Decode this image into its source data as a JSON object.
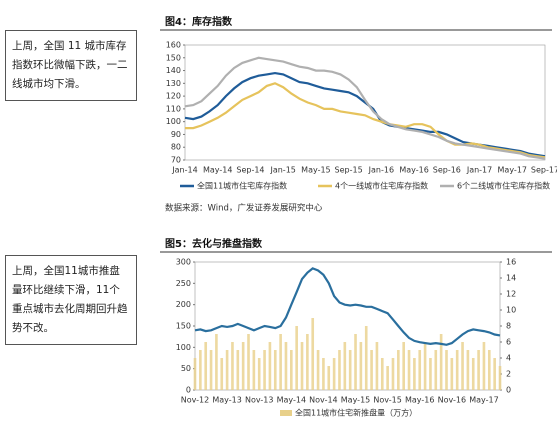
{
  "notes": [
    "上周，全国 11 城市库存指数环比微幅下跌，一二线城市均下滑。",
    "上周，全国11城市推盘量环比继续下滑，11个重点城市去化周期回升趋势不改。"
  ],
  "source": "数据来源：Wind，广发证券发展研究中心",
  "chart_data": [
    {
      "type": "line",
      "title": "图4：库存指数",
      "categories": [
        "Jan-14",
        null,
        null,
        null,
        "May-14",
        null,
        null,
        null,
        "Sep-14",
        null,
        null,
        null,
        "Jan-15",
        null,
        null,
        null,
        "May-15",
        null,
        null,
        null,
        "Sep-15",
        null,
        null,
        null,
        "Jan-16",
        null,
        null,
        null,
        "May-16",
        null,
        null,
        null,
        "Sep-16",
        null,
        null,
        null,
        "Jan-17",
        null,
        null,
        null,
        "May-17",
        null,
        null,
        null,
        "Sep-17"
      ],
      "series": [
        {
          "name": "全国11城市住宅库存指数",
          "color": "#1f5c99",
          "values": [
            103,
            102,
            104,
            108,
            113,
            120,
            126,
            131,
            134,
            136,
            137,
            138,
            137,
            134,
            131,
            130,
            128,
            126,
            125,
            124,
            123,
            120,
            115,
            110,
            100,
            97,
            96,
            95,
            94,
            93,
            92,
            92,
            90,
            87,
            84,
            83,
            82,
            81,
            80,
            79,
            78,
            77,
            75,
            74,
            73
          ]
        },
        {
          "name": "4个一线城市住宅库存指数",
          "color": "#e6c35c",
          "values": [
            95,
            95,
            97,
            100,
            103,
            107,
            112,
            117,
            120,
            123,
            128,
            130,
            127,
            122,
            118,
            115,
            113,
            110,
            110,
            108,
            107,
            106,
            105,
            102,
            100,
            98,
            97,
            96,
            98,
            98,
            96,
            90,
            85,
            82,
            82,
            83,
            82,
            80,
            79,
            78,
            77,
            76,
            74,
            73,
            72
          ]
        },
        {
          "name": "6个二线城市住宅库存指数",
          "color": "#b0b0b0",
          "values": [
            112,
            113,
            116,
            122,
            128,
            136,
            142,
            146,
            148,
            150,
            149,
            148,
            147,
            145,
            143,
            142,
            140,
            140,
            139,
            137,
            133,
            127,
            117,
            108,
            102,
            98,
            96,
            94,
            93,
            92,
            90,
            88,
            85,
            83,
            82,
            81,
            80,
            79,
            78,
            77,
            76,
            75,
            73,
            72,
            71
          ]
        }
      ],
      "ylim": [
        70,
        160
      ],
      "yticks": [
        70,
        80,
        90,
        100,
        110,
        120,
        130,
        140,
        150,
        160
      ]
    },
    {
      "type": "bar-line",
      "title": "图5：去化与推盘指数",
      "categories": [
        "Nov-12",
        null,
        null,
        null,
        null,
        null,
        "May-13",
        null,
        null,
        null,
        null,
        null,
        "Nov-13",
        null,
        null,
        null,
        null,
        null,
        "May-14",
        null,
        null,
        null,
        null,
        null,
        "Nov-14",
        null,
        null,
        null,
        null,
        null,
        "May-15",
        null,
        null,
        null,
        null,
        null,
        "Nov-15",
        null,
        null,
        null,
        null,
        null,
        "May-16",
        null,
        null,
        null,
        null,
        null,
        "Nov-16",
        null,
        null,
        null,
        null,
        null,
        "May-17",
        null,
        null,
        null
      ],
      "series": [
        {
          "name": "全国11城市住宅新推盘量（万方）",
          "color": "#e8d08a",
          "axis": "y2",
          "values": [
            4,
            5,
            6,
            5,
            7,
            4,
            5,
            6,
            5,
            6,
            7,
            5,
            4,
            5,
            6,
            5,
            7,
            6,
            5,
            8,
            6,
            7,
            9,
            5,
            4,
            3,
            4,
            5,
            6,
            5,
            7,
            6,
            8,
            5,
            6,
            4,
            3,
            4,
            5,
            6,
            5,
            4,
            5,
            6,
            4,
            5,
            7,
            5,
            4,
            5,
            6,
            5,
            4,
            5,
            6,
            5,
            4,
            3
          ]
        },
        {
          "color": "#2a6f9e",
          "values": [
            140,
            142,
            138,
            140,
            145,
            150,
            148,
            150,
            155,
            150,
            145,
            140,
            145,
            150,
            148,
            145,
            150,
            170,
            200,
            230,
            260,
            275,
            285,
            280,
            270,
            250,
            220,
            205,
            200,
            198,
            200,
            198,
            195,
            195,
            190,
            185,
            180,
            165,
            150,
            135,
            122,
            115,
            112,
            110,
            108,
            110,
            108,
            106,
            110,
            120,
            130,
            138,
            142,
            140,
            138,
            135,
            130,
            128
          ]
        }
      ],
      "ylim": [
        0,
        300
      ],
      "yticks": [
        0,
        50,
        100,
        150,
        200,
        250,
        300
      ],
      "y2lim": [
        0,
        16
      ],
      "y2ticks": [
        0,
        2,
        4,
        6,
        8,
        10,
        12,
        14,
        16
      ]
    }
  ]
}
